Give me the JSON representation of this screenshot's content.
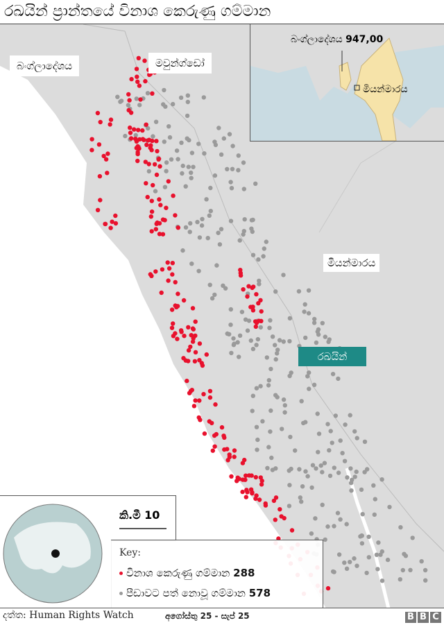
{
  "title": "රඛයින් ප්‍රාන්තයේ විනාශ කෙරුණු ගම්මාන",
  "labels": {
    "bangladesh": "බංග්ලාදේශය",
    "maungdaw": "මවුන්ග්ඩෝ",
    "myanmar": "මියන්මාරය",
    "rakhine": "රඛයින්"
  },
  "inset": {
    "bangladesh_label": "බංග්ලාදේශය",
    "bangladesh_value": "947,00",
    "myanmar_label": "මියන්මාරය"
  },
  "scale": "කි.මී 10",
  "key": {
    "title": "Key:",
    "destroyed_label": "විනාශ කෙරුණු ගම්මාන",
    "destroyed_count": "288",
    "unaffected_label": "පීඩාවට පත් නොවූ ගම්මාන",
    "unaffected_count": "578"
  },
  "footer": {
    "source": "දත්ත: Human Rights Watch",
    "dates": "අගෝස්තු 25 - සැප් 25",
    "logo": "BBC"
  },
  "colors": {
    "destroyed": "#e8112d",
    "unaffected": "#9a9a9a",
    "land": "#dcdcdc",
    "sea": "#ffffff",
    "rakhine_label": "#1e8a86",
    "myanmar_inset": "#f6e3a9",
    "inset_sea": "#c9dbe2"
  },
  "icons": {
    "globe": "globe-locator-icon",
    "locator": "location-dot-icon"
  }
}
